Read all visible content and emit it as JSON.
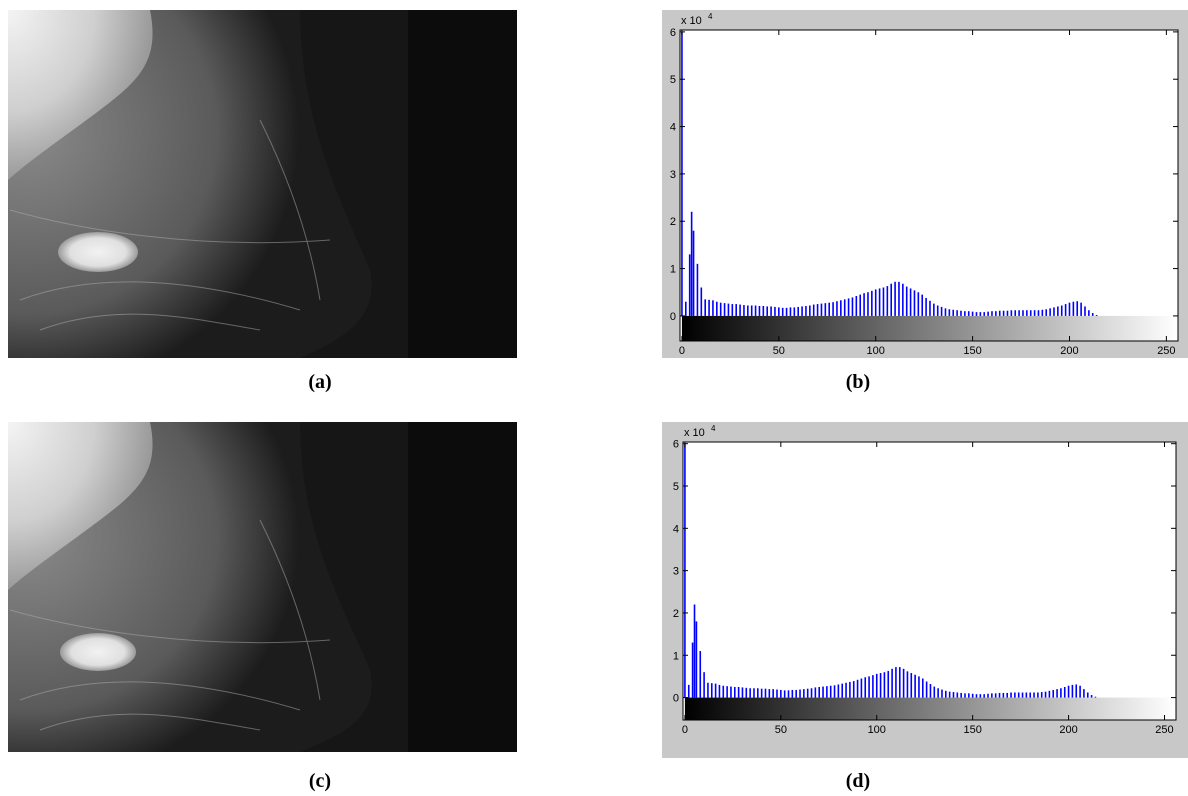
{
  "figure": {
    "captions": [
      "(a)",
      "(b)",
      "(c)",
      "(d)"
    ]
  },
  "chart_data": [
    {
      "type": "bar",
      "color": "#0000ff",
      "y_multiplier": "x 10",
      "y_multiplier_exp": "4",
      "xlim": [
        -1,
        256
      ],
      "ylim": [
        -0.53,
        6.04
      ],
      "xticks": [
        0,
        50,
        100,
        150,
        200,
        250
      ],
      "yticks": [
        0,
        1,
        2,
        3,
        4,
        5,
        6
      ],
      "x": [
        0,
        2,
        4,
        5,
        6,
        8,
        10,
        12,
        14,
        16,
        18,
        20,
        22,
        24,
        26,
        28,
        30,
        32,
        34,
        36,
        38,
        40,
        42,
        44,
        46,
        48,
        50,
        52,
        54,
        56,
        58,
        60,
        62,
        64,
        66,
        68,
        70,
        72,
        74,
        76,
        78,
        80,
        82,
        84,
        86,
        88,
        90,
        92,
        94,
        96,
        98,
        100,
        102,
        104,
        106,
        108,
        110,
        112,
        114,
        116,
        118,
        120,
        122,
        124,
        126,
        128,
        130,
        132,
        134,
        136,
        138,
        140,
        142,
        144,
        146,
        148,
        150,
        152,
        154,
        156,
        158,
        160,
        162,
        164,
        166,
        168,
        170,
        172,
        174,
        176,
        178,
        180,
        182,
        184,
        186,
        188,
        190,
        192,
        194,
        196,
        198,
        200,
        202,
        204,
        206,
        208,
        210,
        212,
        214
      ],
      "values": [
        6.0,
        0.3,
        1.3,
        2.2,
        1.8,
        1.1,
        0.6,
        0.35,
        0.34,
        0.33,
        0.3,
        0.28,
        0.27,
        0.26,
        0.25,
        0.25,
        0.24,
        0.23,
        0.22,
        0.22,
        0.22,
        0.21,
        0.21,
        0.2,
        0.2,
        0.19,
        0.18,
        0.17,
        0.17,
        0.18,
        0.18,
        0.19,
        0.2,
        0.21,
        0.22,
        0.24,
        0.25,
        0.26,
        0.27,
        0.28,
        0.29,
        0.31,
        0.33,
        0.35,
        0.37,
        0.39,
        0.42,
        0.45,
        0.48,
        0.5,
        0.53,
        0.56,
        0.58,
        0.6,
        0.63,
        0.68,
        0.72,
        0.72,
        0.68,
        0.62,
        0.58,
        0.54,
        0.5,
        0.45,
        0.38,
        0.32,
        0.26,
        0.22,
        0.19,
        0.16,
        0.14,
        0.13,
        0.12,
        0.11,
        0.1,
        0.1,
        0.09,
        0.08,
        0.08,
        0.08,
        0.09,
        0.1,
        0.1,
        0.11,
        0.11,
        0.11,
        0.12,
        0.12,
        0.12,
        0.12,
        0.12,
        0.12,
        0.12,
        0.12,
        0.13,
        0.14,
        0.16,
        0.18,
        0.2,
        0.22,
        0.25,
        0.28,
        0.3,
        0.31,
        0.28,
        0.2,
        0.12,
        0.06,
        0.02
      ]
    },
    {
      "type": "bar",
      "color": "#0000ff",
      "y_multiplier": "x 10",
      "y_multiplier_exp": "4",
      "xlim": [
        -1,
        256
      ],
      "ylim": [
        -0.53,
        6.04
      ],
      "xticks": [
        0,
        50,
        100,
        150,
        200,
        250
      ],
      "yticks": [
        0,
        1,
        2,
        3,
        4,
        5,
        6
      ],
      "x": [
        0,
        2,
        4,
        5,
        6,
        8,
        10,
        12,
        14,
        16,
        18,
        20,
        22,
        24,
        26,
        28,
        30,
        32,
        34,
        36,
        38,
        40,
        42,
        44,
        46,
        48,
        50,
        52,
        54,
        56,
        58,
        60,
        62,
        64,
        66,
        68,
        70,
        72,
        74,
        76,
        78,
        80,
        82,
        84,
        86,
        88,
        90,
        92,
        94,
        96,
        98,
        100,
        102,
        104,
        106,
        108,
        110,
        112,
        114,
        116,
        118,
        120,
        122,
        124,
        126,
        128,
        130,
        132,
        134,
        136,
        138,
        140,
        142,
        144,
        146,
        148,
        150,
        152,
        154,
        156,
        158,
        160,
        162,
        164,
        166,
        168,
        170,
        172,
        174,
        176,
        178,
        180,
        182,
        184,
        186,
        188,
        190,
        192,
        194,
        196,
        198,
        200,
        202,
        204,
        206,
        208,
        210,
        212,
        214
      ],
      "values": [
        6.0,
        0.3,
        1.3,
        2.2,
        1.8,
        1.1,
        0.6,
        0.35,
        0.34,
        0.33,
        0.3,
        0.28,
        0.27,
        0.26,
        0.25,
        0.25,
        0.24,
        0.23,
        0.22,
        0.22,
        0.22,
        0.21,
        0.21,
        0.2,
        0.2,
        0.19,
        0.18,
        0.17,
        0.17,
        0.18,
        0.18,
        0.19,
        0.2,
        0.21,
        0.22,
        0.24,
        0.25,
        0.26,
        0.27,
        0.28,
        0.29,
        0.31,
        0.33,
        0.35,
        0.37,
        0.39,
        0.42,
        0.45,
        0.48,
        0.5,
        0.53,
        0.56,
        0.58,
        0.6,
        0.63,
        0.68,
        0.72,
        0.72,
        0.68,
        0.62,
        0.58,
        0.54,
        0.5,
        0.45,
        0.38,
        0.32,
        0.26,
        0.22,
        0.19,
        0.16,
        0.14,
        0.13,
        0.12,
        0.11,
        0.1,
        0.1,
        0.09,
        0.08,
        0.08,
        0.08,
        0.09,
        0.1,
        0.1,
        0.11,
        0.11,
        0.11,
        0.12,
        0.12,
        0.12,
        0.12,
        0.12,
        0.12,
        0.12,
        0.12,
        0.13,
        0.14,
        0.16,
        0.18,
        0.2,
        0.22,
        0.25,
        0.28,
        0.3,
        0.31,
        0.28,
        0.2,
        0.12,
        0.06,
        0.02
      ]
    }
  ]
}
